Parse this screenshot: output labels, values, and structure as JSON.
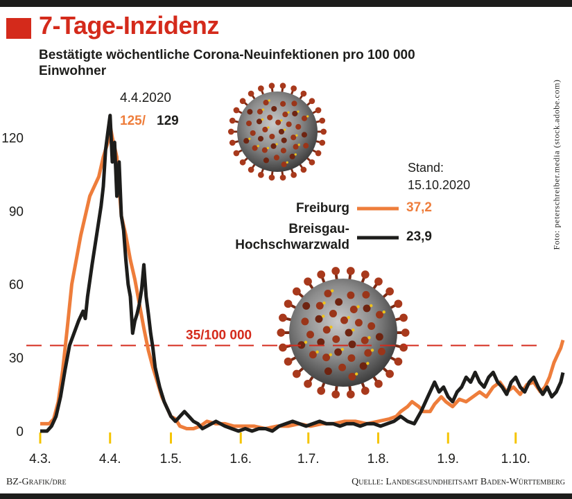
{
  "header": {
    "title": "7-Tage-Inzidenz",
    "subtitle": "Bestätigte wöchentliche Corona-Neuinfektionen pro 100 000 Einwohner"
  },
  "credit": "Foto: peterschreiber.media (stock.adobe.com)",
  "footer": {
    "left": "BZ-Grafik/dre",
    "right": "Quelle: Landesgesundheitsamt Baden-Württemberg"
  },
  "colors": {
    "freiburg": "#ee7d3b",
    "breisgau": "#1d1d1b",
    "threshold": "#d42a1b",
    "accent": "#d42a1b",
    "tick_marker": "#f5c400"
  },
  "icons": [
    "title-square-icon",
    "coronavirus-icon"
  ],
  "chart_data": {
    "type": "line",
    "title": "7-Tage-Inzidenz",
    "x_tick_labels": [
      "4.3.",
      "4.4.",
      "1.5.",
      "1.6.",
      "1.7.",
      "1.8.",
      "1.9.",
      "1.10."
    ],
    "x_tick_days": [
      0,
      31,
      58,
      89,
      119,
      150,
      181,
      211
    ],
    "y_ticks": [
      0,
      30,
      60,
      90,
      120
    ],
    "ylim": [
      0,
      130
    ],
    "xlim_dates": [
      "2020-03-04",
      "2020-10-15"
    ],
    "grid": false,
    "legend_position": "right",
    "peak": {
      "date": "4.4.2020",
      "freiburg_label": "125/",
      "breisgau_label": "129"
    },
    "threshold": {
      "value": 35,
      "label": "35/100 000"
    },
    "stand": {
      "label": "Stand:",
      "date": "15.10.2020"
    },
    "series": [
      {
        "name": "Freiburg",
        "final_value": "37,2",
        "points": [
          [
            0,
            3
          ],
          [
            4,
            3
          ],
          [
            6,
            5
          ],
          [
            8,
            12
          ],
          [
            10,
            25
          ],
          [
            12,
            42
          ],
          [
            14,
            60
          ],
          [
            16,
            70
          ],
          [
            18,
            80
          ],
          [
            20,
            88
          ],
          [
            22,
            96
          ],
          [
            24,
            100
          ],
          [
            26,
            104
          ],
          [
            28,
            112
          ],
          [
            30,
            118
          ],
          [
            31,
            125
          ],
          [
            32,
            120
          ],
          [
            34,
            112
          ],
          [
            35,
            100
          ],
          [
            36,
            88
          ],
          [
            38,
            80
          ],
          [
            40,
            70
          ],
          [
            42,
            62
          ],
          [
            44,
            52
          ],
          [
            46,
            42
          ],
          [
            48,
            33
          ],
          [
            50,
            26
          ],
          [
            52,
            20
          ],
          [
            54,
            14
          ],
          [
            56,
            10
          ],
          [
            58,
            6
          ],
          [
            60,
            5
          ],
          [
            62,
            2
          ],
          [
            65,
            1
          ],
          [
            68,
            1
          ],
          [
            71,
            2
          ],
          [
            74,
            4
          ],
          [
            78,
            3
          ],
          [
            82,
            3
          ],
          [
            86,
            2
          ],
          [
            90,
            2
          ],
          [
            95,
            2
          ],
          [
            100,
            1
          ],
          [
            105,
            2
          ],
          [
            110,
            2
          ],
          [
            115,
            3
          ],
          [
            120,
            2
          ],
          [
            125,
            3
          ],
          [
            130,
            3
          ],
          [
            135,
            4
          ],
          [
            140,
            4
          ],
          [
            145,
            3
          ],
          [
            150,
            4
          ],
          [
            155,
            5
          ],
          [
            158,
            6
          ],
          [
            160,
            8
          ],
          [
            163,
            10
          ],
          [
            165,
            12
          ],
          [
            168,
            10
          ],
          [
            170,
            8
          ],
          [
            173,
            8
          ],
          [
            175,
            11
          ],
          [
            178,
            14
          ],
          [
            180,
            12
          ],
          [
            183,
            10
          ],
          [
            186,
            13
          ],
          [
            189,
            12
          ],
          [
            192,
            14
          ],
          [
            195,
            16
          ],
          [
            198,
            14
          ],
          [
            201,
            18
          ],
          [
            204,
            20
          ],
          [
            207,
            16
          ],
          [
            210,
            18
          ],
          [
            213,
            15
          ],
          [
            216,
            19
          ],
          [
            219,
            20
          ],
          [
            222,
            16
          ],
          [
            224,
            18
          ],
          [
            226,
            22
          ],
          [
            228,
            28
          ],
          [
            230,
            32
          ],
          [
            231,
            34
          ],
          [
            232,
            37.2
          ]
        ]
      },
      {
        "name": "Breisgau-Hochschwarzwald",
        "final_value": "23,9",
        "points": [
          [
            0,
            0
          ],
          [
            3,
            0
          ],
          [
            5,
            2
          ],
          [
            7,
            6
          ],
          [
            9,
            14
          ],
          [
            11,
            25
          ],
          [
            13,
            35
          ],
          [
            15,
            40
          ],
          [
            17,
            45
          ],
          [
            19,
            49
          ],
          [
            20,
            46
          ],
          [
            21,
            55
          ],
          [
            23,
            68
          ],
          [
            25,
            80
          ],
          [
            27,
            92
          ],
          [
            28,
            100
          ],
          [
            29,
            115
          ],
          [
            30,
            122
          ],
          [
            31,
            129
          ],
          [
            32,
            110
          ],
          [
            33,
            118
          ],
          [
            34,
            96
          ],
          [
            35,
            110
          ],
          [
            36,
            88
          ],
          [
            37,
            82
          ],
          [
            38,
            70
          ],
          [
            39,
            60
          ],
          [
            40,
            55
          ],
          [
            41,
            40
          ],
          [
            42,
            45
          ],
          [
            43,
            48
          ],
          [
            44,
            52
          ],
          [
            45,
            58
          ],
          [
            46,
            68
          ],
          [
            47,
            55
          ],
          [
            48,
            48
          ],
          [
            49,
            40
          ],
          [
            50,
            34
          ],
          [
            51,
            26
          ],
          [
            52,
            22
          ],
          [
            53,
            18
          ],
          [
            54,
            15
          ],
          [
            55,
            12
          ],
          [
            56,
            10
          ],
          [
            57,
            8
          ],
          [
            58,
            6
          ],
          [
            60,
            4
          ],
          [
            62,
            6
          ],
          [
            64,
            8
          ],
          [
            66,
            6
          ],
          [
            68,
            4
          ],
          [
            70,
            3
          ],
          [
            72,
            1
          ],
          [
            74,
            2
          ],
          [
            76,
            3
          ],
          [
            78,
            4
          ],
          [
            80,
            3
          ],
          [
            82,
            2
          ],
          [
            85,
            1
          ],
          [
            88,
            0
          ],
          [
            91,
            1
          ],
          [
            94,
            0
          ],
          [
            97,
            1
          ],
          [
            100,
            1
          ],
          [
            103,
            0
          ],
          [
            106,
            2
          ],
          [
            109,
            3
          ],
          [
            112,
            4
          ],
          [
            115,
            3
          ],
          [
            118,
            2
          ],
          [
            121,
            3
          ],
          [
            124,
            4
          ],
          [
            127,
            3
          ],
          [
            130,
            3
          ],
          [
            133,
            2
          ],
          [
            136,
            3
          ],
          [
            139,
            3
          ],
          [
            142,
            2
          ],
          [
            145,
            3
          ],
          [
            148,
            3
          ],
          [
            151,
            2
          ],
          [
            154,
            3
          ],
          [
            157,
            4
          ],
          [
            160,
            6
          ],
          [
            163,
            4
          ],
          [
            166,
            3
          ],
          [
            169,
            8
          ],
          [
            172,
            14
          ],
          [
            175,
            20
          ],
          [
            177,
            16
          ],
          [
            179,
            18
          ],
          [
            181,
            14
          ],
          [
            183,
            12
          ],
          [
            185,
            16
          ],
          [
            187,
            18
          ],
          [
            189,
            22
          ],
          [
            191,
            20
          ],
          [
            193,
            24
          ],
          [
            195,
            20
          ],
          [
            197,
            18
          ],
          [
            199,
            22
          ],
          [
            201,
            24
          ],
          [
            203,
            20
          ],
          [
            205,
            18
          ],
          [
            207,
            15
          ],
          [
            209,
            20
          ],
          [
            211,
            22
          ],
          [
            213,
            18
          ],
          [
            215,
            16
          ],
          [
            217,
            20
          ],
          [
            219,
            22
          ],
          [
            221,
            18
          ],
          [
            223,
            15
          ],
          [
            225,
            18
          ],
          [
            227,
            14
          ],
          [
            229,
            16
          ],
          [
            231,
            20
          ],
          [
            232,
            23.9
          ]
        ]
      }
    ]
  }
}
